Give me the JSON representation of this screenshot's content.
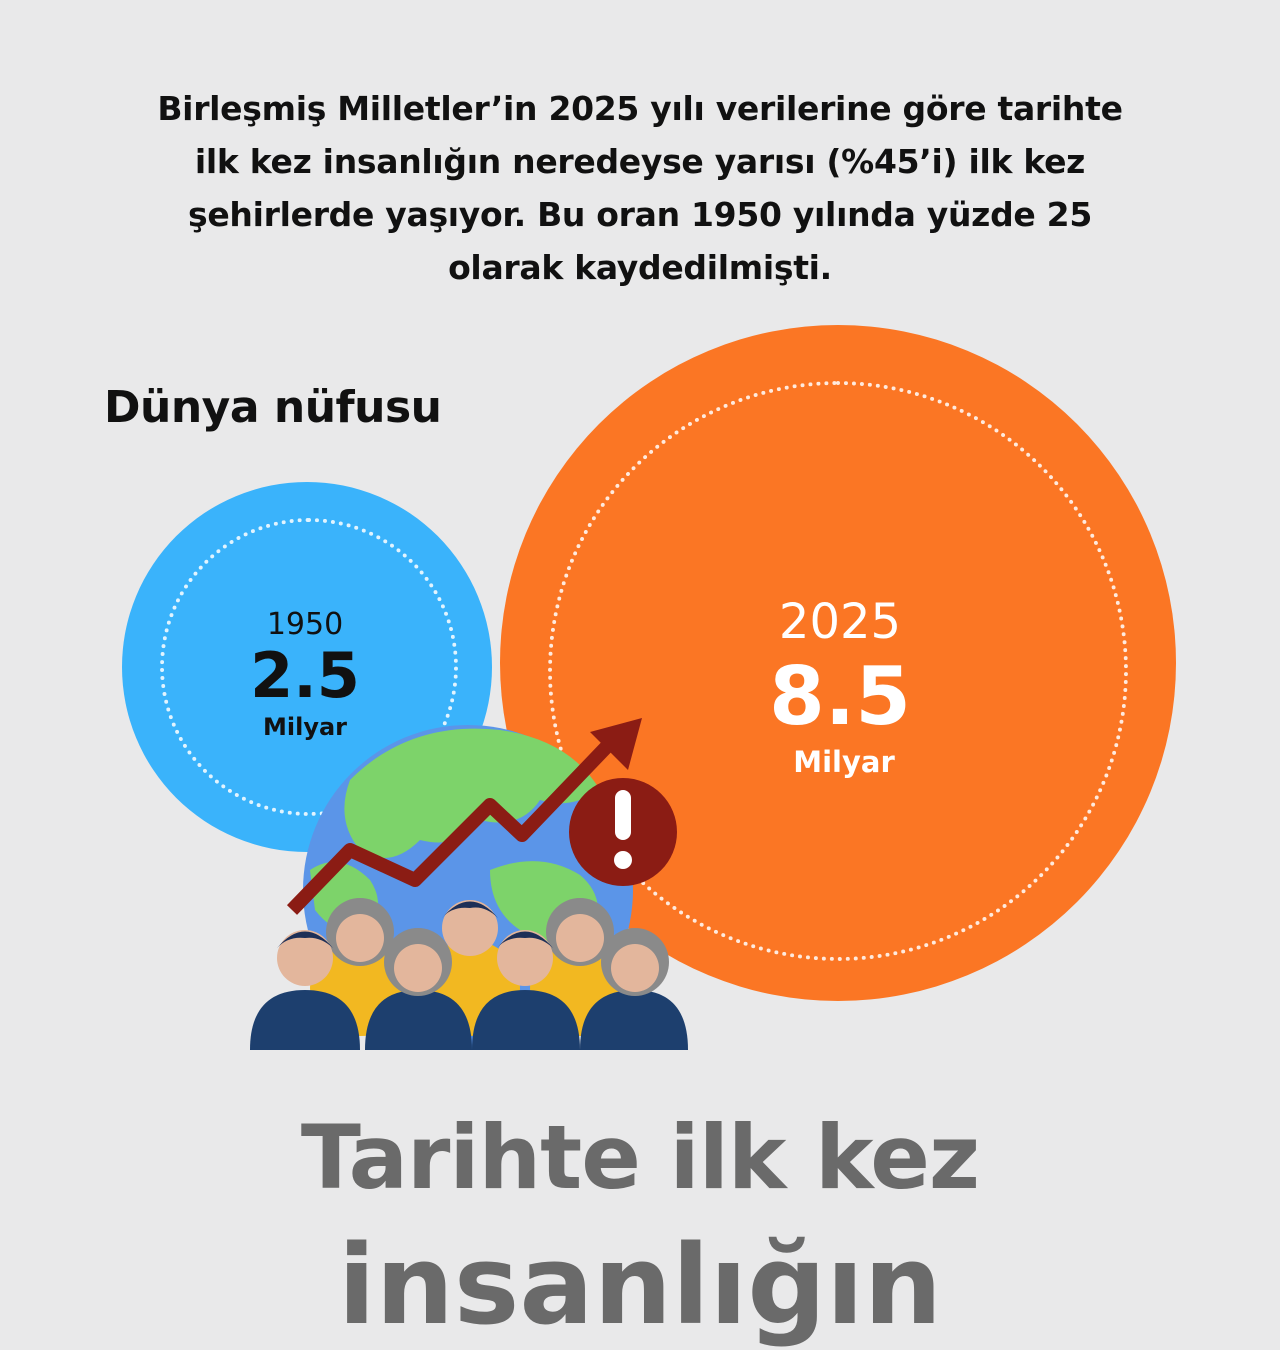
{
  "intro": {
    "line1": "Birleşmiş Milletler’in 2025 yılı verilerine göre tarihte",
    "line2": "ilk kez insanlığın neredeyse yarısı (%45’i) ilk kez",
    "line3": "şehirlerde yaşıyor. Bu oran 1950 yılında yüzde 25",
    "line4": "olarak kaydedilmişti."
  },
  "section_title": "Dünya nüfusu",
  "population": {
    "past": {
      "year": "1950",
      "value": "2.5",
      "unit": "Milyar",
      "color": "#3ab3fb"
    },
    "present": {
      "year": "2025",
      "value": "8.5",
      "unit": "Milyar",
      "color": "#fb7624"
    }
  },
  "illustration": {
    "icons": [
      "globe-icon",
      "trend-arrow-icon",
      "alert-icon",
      "people-group-icon"
    ],
    "arrow_color": "#8b1c14"
  },
  "headline": {
    "line1": "Tarihte ilk kez",
    "line2": "insanlığın"
  }
}
